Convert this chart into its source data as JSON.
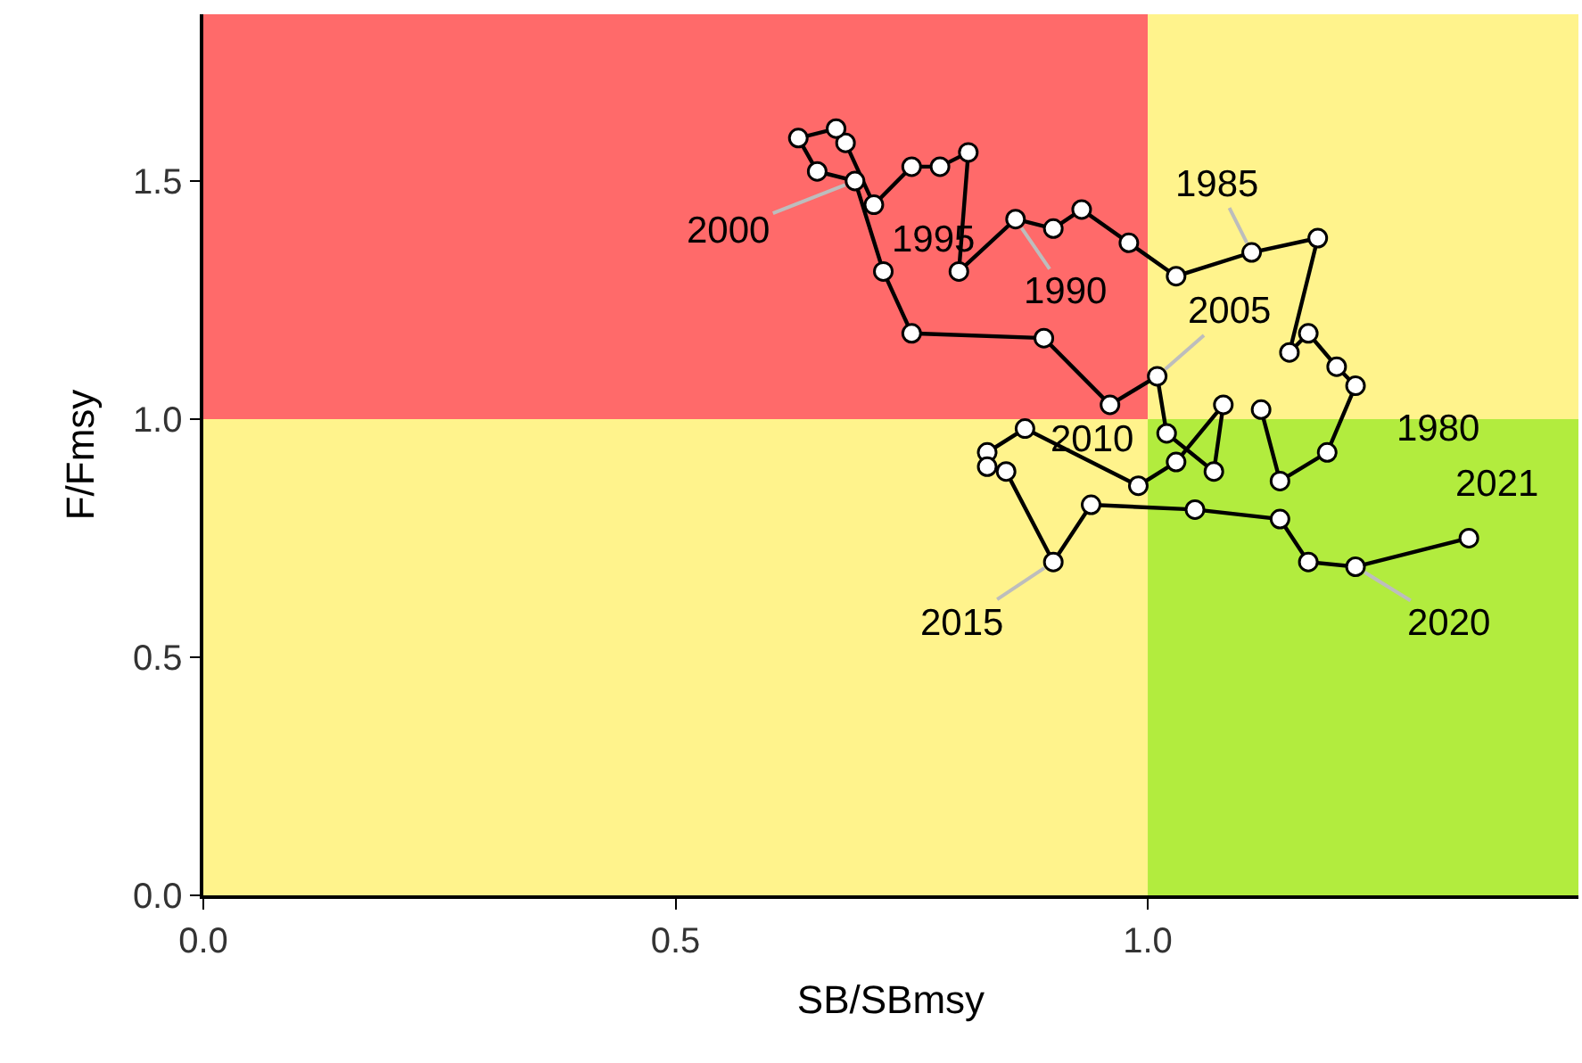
{
  "chart_data": {
    "type": "line",
    "xlabel": "SB/SBmsy",
    "ylabel": "F/Fmsy",
    "xlim": [
      0,
      1.456
    ],
    "ylim": [
      0,
      1.85
    ],
    "xticks": [
      {
        "value": 0,
        "label": "0.0"
      },
      {
        "value": 0.5,
        "label": "0.5"
      },
      {
        "value": 1,
        "label": "1.0"
      }
    ],
    "yticks": [
      {
        "value": 0,
        "label": "0.0"
      },
      {
        "value": 0.5,
        "label": "0.5"
      },
      {
        "value": 1,
        "label": "1.0"
      },
      {
        "value": 1.5,
        "label": "1.5"
      }
    ],
    "grid": false,
    "marker": "circle",
    "line_style": "solid",
    "bands": [
      {
        "axis": "x",
        "from": 0,
        "to": 1,
        "color": "#ff6a6a"
      },
      {
        "axis": "x",
        "from": 1,
        "to": 1.456,
        "color": "#fff38c"
      },
      {
        "axis": "y",
        "from": 0,
        "to": 1,
        "color": "#fff38c"
      },
      {
        "axis": "y",
        "from": 0,
        "to": 1,
        "color": "#b2ec3e"
      }
    ],
    "series": [
      {
        "color": "#000000",
        "x": [
          1.12,
          1.14,
          1.19,
          1.22,
          1.2,
          1.17,
          1.15,
          1.18,
          1.11,
          1.03,
          0.98,
          0.93,
          0.9,
          0.86,
          0.8,
          0.81,
          0.78,
          0.75,
          0.71,
          0.68,
          0.67,
          0.63,
          0.65,
          0.69,
          0.72,
          0.75,
          0.89,
          0.96,
          1.01,
          1.02,
          1.07,
          1.08,
          1.03,
          0.99,
          0.87,
          0.83,
          0.83,
          0.85,
          0.9,
          0.94,
          1.05,
          1.14,
          1.17,
          1.22,
          1.34
        ],
        "values": [
          1.02,
          0.87,
          0.93,
          1.07,
          1.11,
          1.18,
          1.14,
          1.38,
          1.35,
          1.3,
          1.37,
          1.44,
          1.4,
          1.42,
          1.31,
          1.56,
          1.53,
          1.53,
          1.45,
          1.58,
          1.61,
          1.59,
          1.52,
          1.5,
          1.31,
          1.18,
          1.17,
          1.03,
          1.09,
          0.97,
          0.89,
          1.03,
          0.91,
          0.86,
          0.98,
          0.93,
          0.9,
          0.89,
          0.7,
          0.82,
          0.81,
          0.79,
          0.7,
          0.69,
          0.75
        ]
      }
    ],
    "annotations": [
      {
        "text": "1980",
        "x": 1.22,
        "y": 1.07
      },
      {
        "text": "1985",
        "x": 1.11,
        "y": 1.35
      },
      {
        "text": "1990",
        "x": 0.86,
        "y": 1.42
      },
      {
        "text": "1995",
        "x": 0.71,
        "y": 1.45
      },
      {
        "text": "2000",
        "x": 0.69,
        "y": 1.5
      },
      {
        "text": "2005",
        "x": 1.01,
        "y": 1.09
      },
      {
        "text": "2010",
        "x": 0.99,
        "y": 0.86
      },
      {
        "text": "2015",
        "x": 0.9,
        "y": 0.7
      },
      {
        "text": "2020",
        "x": 1.22,
        "y": 0.69
      },
      {
        "text": "2021",
        "x": 1.34,
        "y": 0.75
      }
    ]
  }
}
